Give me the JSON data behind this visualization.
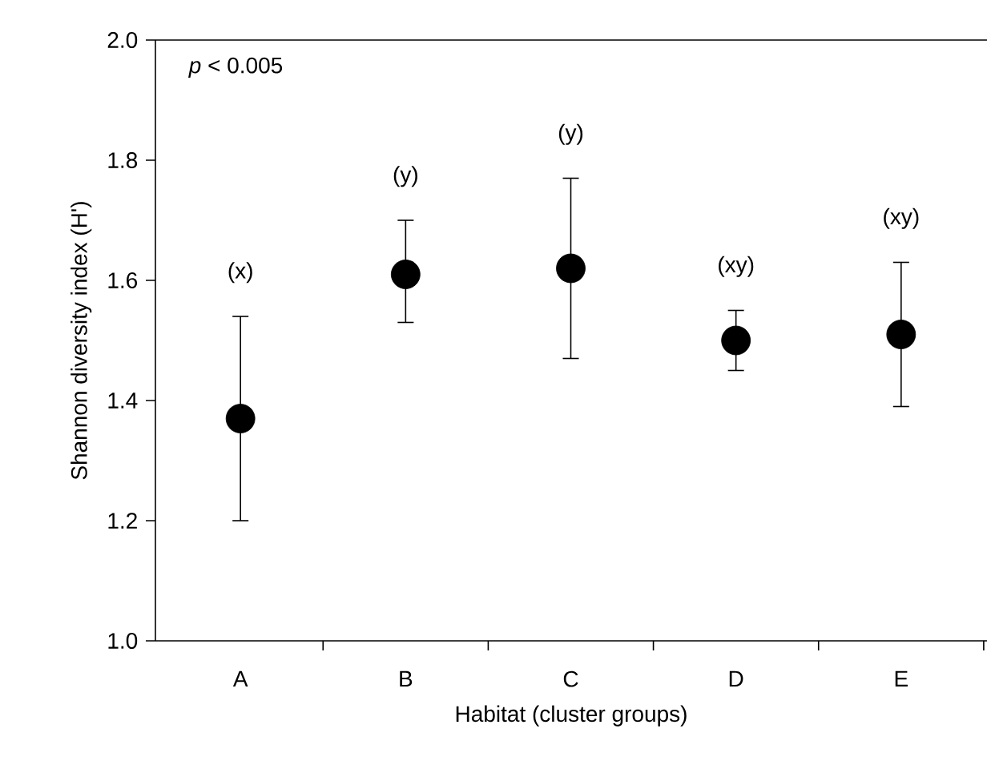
{
  "chart_data": {
    "type": "scatter",
    "xlabel": "Habitat (cluster groups)",
    "ylabel": "Shannon diversity index (H')",
    "categories": [
      "A",
      "B",
      "C",
      "D",
      "E"
    ],
    "series": [
      {
        "color": "#000000",
        "values": [
          1.37,
          1.61,
          1.62,
          1.5,
          1.51
        ],
        "errors": [
          [
            1.2,
            1.54
          ],
          [
            1.53,
            1.7
          ],
          [
            1.47,
            1.77
          ],
          [
            1.45,
            1.55
          ],
          [
            1.39,
            1.63
          ]
        ]
      }
    ],
    "ylim": [
      1.0,
      2.0
    ],
    "yticks": [
      {
        "value": 1.0,
        "label": "1.0"
      },
      1.2,
      1.4,
      1.6,
      1.8,
      {
        "value": 2.0,
        "label": "2.0"
      }
    ],
    "annotations": [
      "*p* < 0.005",
      "(x)",
      "(y)",
      "(y)",
      "(xy)",
      "(xy)"
    ]
  }
}
